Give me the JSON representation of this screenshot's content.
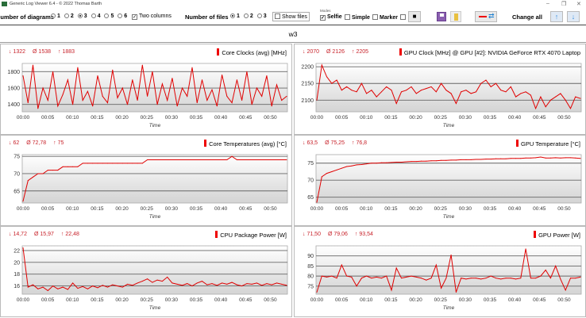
{
  "window": {
    "title": "Generic Log Viewer 6.4 - © 2022 Thomas Barth",
    "minimize": "–",
    "maximize": "❐",
    "close": "✕"
  },
  "toolbar": {
    "diagrams_label": "Number of diagrams",
    "diagram_options": [
      "1",
      "2",
      "3",
      "4",
      "5",
      "6"
    ],
    "diagrams_selected": "3",
    "two_columns_label": "Two columns",
    "two_columns_checked": true,
    "files_label": "Number of files",
    "file_options": [
      "1",
      "2",
      "3"
    ],
    "files_selected": "1",
    "show_files_label": "Show files",
    "show_files_checked": false,
    "modes_label": "Modes",
    "selfie_label": "Selfie",
    "selfie_checked": true,
    "simple_label": "Simple",
    "marker_label": "Marker",
    "change_all_label": "Change all",
    "icons": [
      "camera-icon",
      "save-icon",
      "folder-icon",
      "swap-line-icon",
      "arrow-up-icon",
      "arrow-down-icon"
    ]
  },
  "file_name": "w3",
  "colors": {
    "line": "#e00000",
    "stats": "#c8232b"
  },
  "chart_data": [
    {
      "type": "line",
      "title": "Core Clocks (avg) [MHz]",
      "xlabel": "Time",
      "min": "1322",
      "avg": "1538",
      "max": "1883",
      "ylim": [
        1310,
        1900
      ],
      "yticks": [
        1400,
        1600,
        1800
      ],
      "xticks": [
        "00:00",
        "00:05",
        "00:10",
        "00:15",
        "00:20",
        "00:25",
        "00:30",
        "00:35",
        "00:40",
        "00:45",
        "00:50"
      ],
      "xlim_min": [
        0,
        53.3
      ],
      "values": [
        1750,
        1420,
        1880,
        1350,
        1600,
        1450,
        1800,
        1380,
        1520,
        1700,
        1400,
        1850,
        1450,
        1560,
        1380,
        1750,
        1500,
        1420,
        1820,
        1480,
        1600,
        1400,
        1700,
        1450,
        1880,
        1500,
        1800,
        1400,
        1650,
        1450,
        1720,
        1380,
        1600,
        1500,
        1850,
        1420,
        1700,
        1450,
        1580,
        1380,
        1760,
        1500,
        1420,
        1700,
        1450,
        1800,
        1400,
        1600,
        1500,
        1750,
        1380,
        1640,
        1450,
        1500
      ]
    },
    {
      "type": "line",
      "title": "GPU Clock [MHz] @ GPU [#2]: NVIDIA GeForce RTX 4070 Laptop",
      "xlabel": "Time",
      "min": "2070",
      "avg": "2126",
      "max": "2205",
      "ylim": [
        2065,
        2210
      ],
      "yticks": [
        2100,
        2150,
        2200
      ],
      "xticks": [
        "00:00",
        "00:05",
        "00:10",
        "00:15",
        "00:20",
        "00:25",
        "00:30",
        "00:35",
        "00:40",
        "00:45",
        "00:50"
      ],
      "xlim_min": [
        0,
        53.3
      ],
      "values": [
        2100,
        2205,
        2170,
        2150,
        2160,
        2130,
        2140,
        2130,
        2125,
        2150,
        2120,
        2130,
        2110,
        2125,
        2140,
        2130,
        2090,
        2125,
        2130,
        2140,
        2120,
        2130,
        2135,
        2140,
        2125,
        2150,
        2130,
        2120,
        2090,
        2125,
        2130,
        2120,
        2125,
        2150,
        2160,
        2140,
        2150,
        2130,
        2125,
        2140,
        2110,
        2120,
        2125,
        2115,
        2075,
        2110,
        2080,
        2100,
        2110,
        2120,
        2100,
        2075,
        2110,
        2105
      ]
    },
    {
      "type": "line",
      "title": "Core Temperatures (avg) [°C]",
      "xlabel": "Time",
      "min": "62",
      "avg": "72,78",
      "max": "75",
      "ylim": [
        61.5,
        75.5
      ],
      "yticks": [
        65,
        70,
        75
      ],
      "xticks": [
        "00:00",
        "00:05",
        "00:10",
        "00:15",
        "00:20",
        "00:25",
        "00:30",
        "00:35",
        "00:40",
        "00:45",
        "00:50"
      ],
      "xlim_min": [
        0,
        53.3
      ],
      "values": [
        62,
        68,
        69,
        70,
        70,
        71,
        71,
        71,
        72,
        72,
        72,
        72,
        73,
        73,
        73,
        73,
        73,
        73,
        73,
        73,
        73,
        73,
        73,
        73,
        73,
        74,
        74,
        74,
        74,
        74,
        74,
        74,
        74,
        74,
        74,
        74,
        74,
        74,
        74,
        74,
        74,
        74,
        75,
        74,
        74,
        74,
        74,
        74,
        74,
        74,
        74,
        74,
        74,
        74
      ]
    },
    {
      "type": "line",
      "title": "GPU Temperature [°C]",
      "xlabel": "Time",
      "min": "63,5",
      "avg": "75,25",
      "max": "76,8",
      "ylim": [
        63.3,
        77.5
      ],
      "yticks": [
        65,
        70,
        75
      ],
      "xticks": [
        "00:00",
        "00:05",
        "00:10",
        "00:15",
        "00:20",
        "00:25",
        "00:30",
        "00:35",
        "00:40",
        "00:45",
        "00:50"
      ],
      "xlim_min": [
        0,
        53.3
      ],
      "values": [
        63.5,
        71,
        72,
        72.5,
        73,
        73.5,
        74,
        74.2,
        74.5,
        74.6,
        74.8,
        75,
        75,
        75.1,
        75.1,
        75.2,
        75.3,
        75.3,
        75.4,
        75.5,
        75.5,
        75.6,
        75.6,
        75.7,
        75.7,
        75.8,
        75.8,
        75.9,
        75.9,
        76,
        76,
        76,
        76.1,
        76.1,
        76.2,
        76.2,
        76.3,
        76.3,
        76.3,
        76.4,
        76.4,
        76.4,
        76.5,
        76.5,
        76.6,
        76.8,
        76.5,
        76.5,
        76.6,
        76.5,
        76.6,
        76.6,
        76.5,
        76.4
      ]
    },
    {
      "type": "line",
      "title": "CPU Package Power [W]",
      "xlabel": "Time",
      "min": "14,72",
      "avg": "15,97",
      "max": "22,48",
      "ylim": [
        14.6,
        22.8
      ],
      "yticks": [
        16,
        18,
        20,
        22
      ],
      "xticks": [
        "00:00",
        "00:05",
        "00:10",
        "00:15",
        "00:20",
        "00:25",
        "00:30",
        "00:35",
        "00:40",
        "00:45",
        "00:50"
      ],
      "xlim_min": [
        0,
        53.3
      ],
      "values": [
        22.48,
        15.8,
        16.2,
        15.5,
        15.8,
        15.2,
        16,
        15.5,
        15.8,
        15.4,
        16.5,
        15.6,
        15.9,
        15.5,
        16,
        15.7,
        16.1,
        15.8,
        16.2,
        16,
        15.8,
        16.3,
        16.1,
        16.5,
        16.8,
        17.2,
        16.6,
        17,
        16.8,
        17.5,
        16.5,
        16.3,
        16.1,
        16.4,
        16,
        16.5,
        16.8,
        16.2,
        16.4,
        16.1,
        16.5,
        16.3,
        16.6,
        16.2,
        16,
        16.4,
        16.3,
        16.5,
        16.1,
        16.4,
        16.2,
        16.5,
        16.3,
        16.1
      ]
    },
    {
      "type": "line",
      "title": "GPU Power [W]",
      "xlabel": "Time",
      "min": "71,50",
      "avg": "79,06",
      "max": "93,54",
      "ylim": [
        71,
        95
      ],
      "yticks": [
        75,
        80,
        85,
        90
      ],
      "xticks": [
        "00:00",
        "00:05",
        "00:10",
        "00:15",
        "00:20",
        "00:25",
        "00:30",
        "00:35",
        "00:40",
        "00:45",
        "00:50"
      ],
      "xlim_min": [
        0,
        53.3
      ],
      "values": [
        72,
        80,
        79.5,
        80,
        79,
        85.5,
        80,
        79.5,
        75,
        79,
        80,
        79,
        79.5,
        79,
        80,
        73,
        84,
        79,
        79.5,
        80,
        79.5,
        79,
        78,
        79,
        85.5,
        74,
        79,
        90.5,
        72,
        79,
        78.5,
        79,
        79,
        78.5,
        79,
        80,
        79,
        78.5,
        79,
        79,
        78.5,
        79,
        93.5,
        79,
        79,
        80,
        83,
        79,
        85,
        78.5,
        73,
        79,
        79,
        79.5
      ]
    }
  ]
}
